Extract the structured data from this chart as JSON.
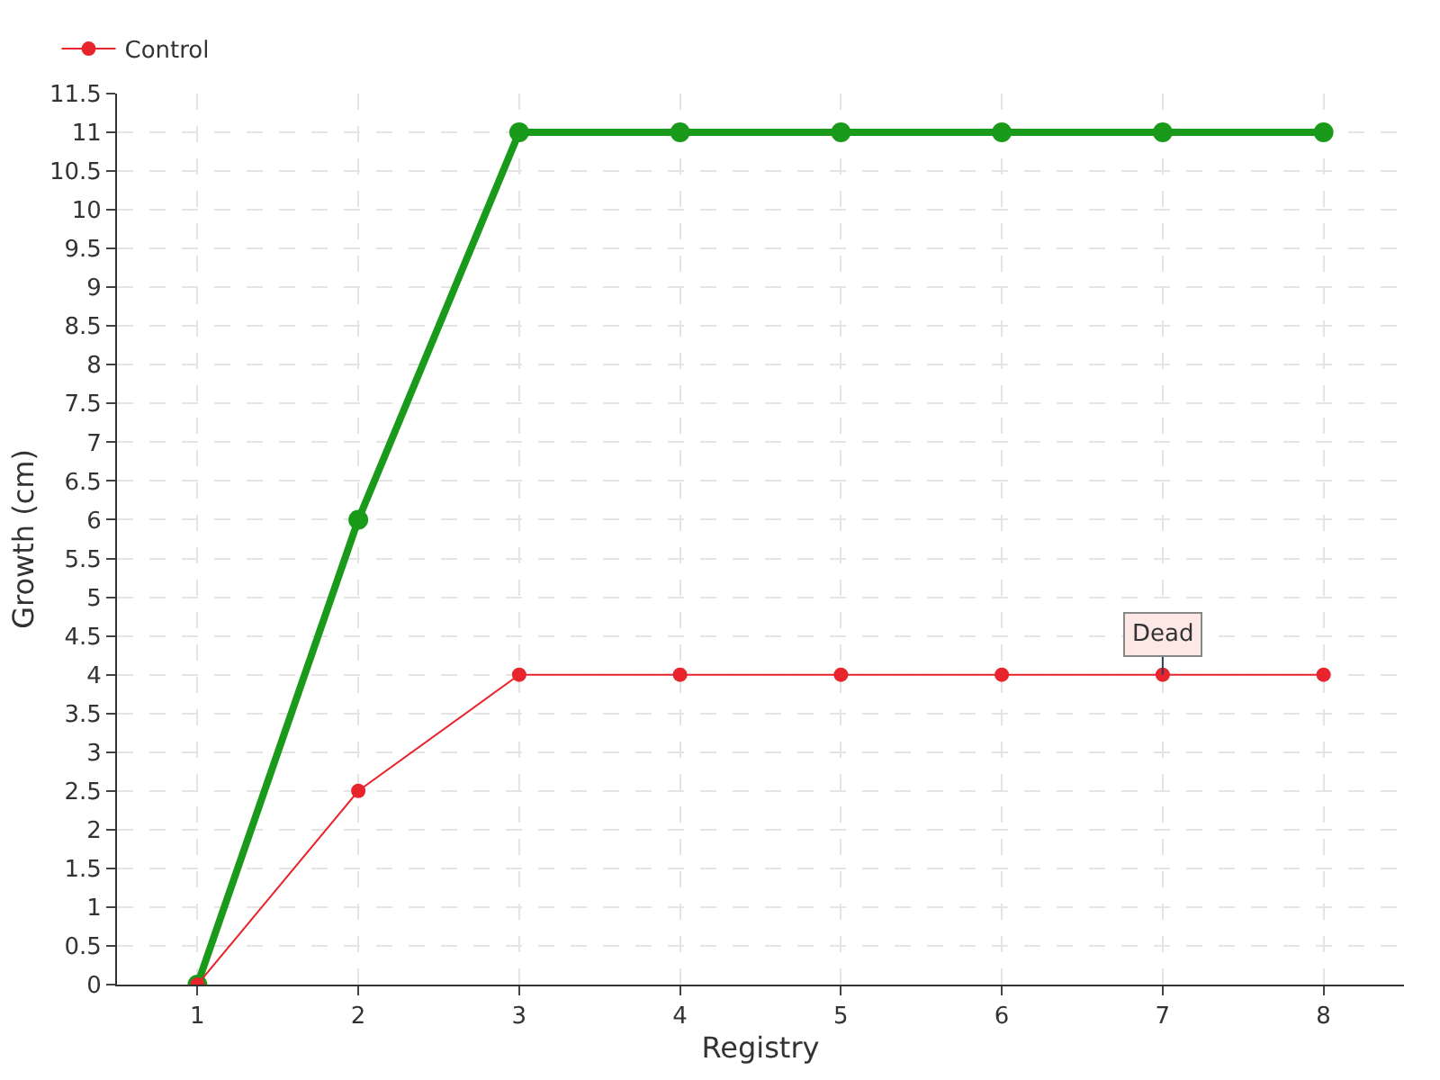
{
  "chart_data": {
    "type": "line",
    "xlabel": "Registry",
    "ylabel": "Growth (cm)",
    "x": [
      1,
      2,
      3,
      4,
      5,
      6,
      7,
      8
    ],
    "series": [
      {
        "color": "#1a9a1a",
        "values": [
          0,
          6,
          11,
          11,
          11,
          11,
          11,
          11
        ]
      },
      {
        "name": "Control",
        "color": "#e8242c",
        "values": [
          0,
          2.5,
          4,
          4,
          4,
          4,
          4,
          4
        ]
      }
    ],
    "xlim": [
      0.5,
      8.5
    ],
    "xticks": [
      1,
      2,
      3,
      4,
      5,
      6,
      7,
      8
    ],
    "ylim": [
      0,
      11.5
    ],
    "yticks": [
      0,
      0.5,
      1,
      1.5,
      2,
      2.5,
      3,
      3.5,
      4,
      4.5,
      5,
      5.5,
      6,
      6.5,
      7,
      7.5,
      8,
      8.5,
      9,
      9.5,
      10,
      10.5,
      11,
      11.5
    ],
    "annotations": [
      {
        "text": "Dead",
        "x": 7,
        "y": 4
      }
    ],
    "grid": true,
    "legend": "top left",
    "marker": "circle",
    "line_style": "solid"
  }
}
